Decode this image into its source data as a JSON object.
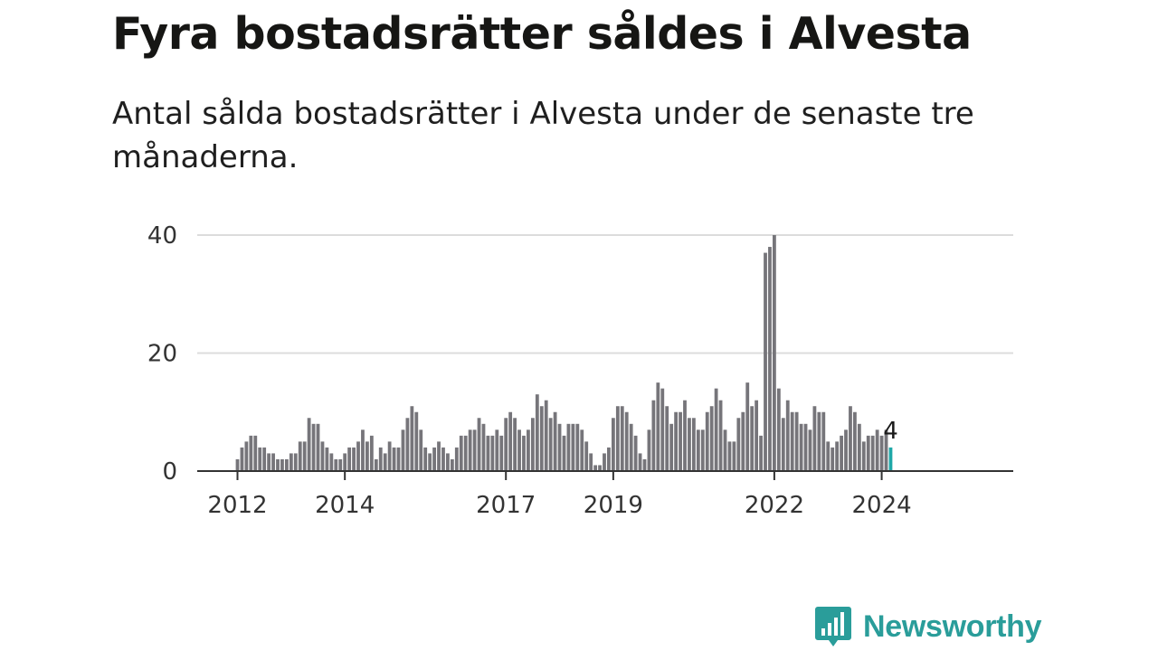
{
  "title": "Fyra bostadsrätter såldes i Alvesta",
  "subtitle": "Antal sålda bostadsrätter i Alvesta under de senaste tre månaderna.",
  "logo": {
    "text": "Newsworthy",
    "icon": "newsworthy-bars-icon"
  },
  "colors": {
    "bar": "#76757a",
    "highlight": "#1fa8a8",
    "grid": "#dcdcdc",
    "axis": "#333333"
  },
  "chart_data": {
    "type": "bar",
    "start": "2012-01",
    "interval": "month",
    "ylim": [
      0,
      40
    ],
    "yticks": [
      0,
      20,
      40
    ],
    "xtick_labels": [
      "2012",
      "2014",
      "2017",
      "2019",
      "2022",
      "2024"
    ],
    "values": [
      2,
      4,
      5,
      6,
      6,
      4,
      4,
      3,
      3,
      2,
      2,
      2,
      3,
      3,
      5,
      5,
      9,
      8,
      8,
      5,
      4,
      3,
      2,
      2,
      3,
      4,
      4,
      5,
      7,
      5,
      6,
      2,
      4,
      3,
      5,
      4,
      4,
      7,
      9,
      11,
      10,
      7,
      4,
      3,
      4,
      5,
      4,
      3,
      2,
      4,
      6,
      6,
      7,
      7,
      9,
      8,
      6,
      6,
      7,
      6,
      9,
      10,
      9,
      7,
      6,
      7,
      9,
      13,
      11,
      12,
      9,
      10,
      8,
      6,
      8,
      8,
      8,
      7,
      5,
      3,
      1,
      1,
      3,
      4,
      9,
      11,
      11,
      10,
      8,
      6,
      3,
      2,
      7,
      12,
      15,
      14,
      11,
      8,
      10,
      10,
      12,
      9,
      9,
      7,
      7,
      10,
      11,
      14,
      12,
      7,
      5,
      5,
      9,
      10,
      15,
      11,
      12,
      6,
      37,
      38,
      40,
      14,
      9,
      12,
      10,
      10,
      8,
      8,
      7,
      11,
      10,
      10,
      5,
      4,
      5,
      6,
      7,
      11,
      10,
      8,
      5,
      6,
      6,
      7,
      6,
      7,
      4
    ],
    "highlight_label": "4"
  }
}
